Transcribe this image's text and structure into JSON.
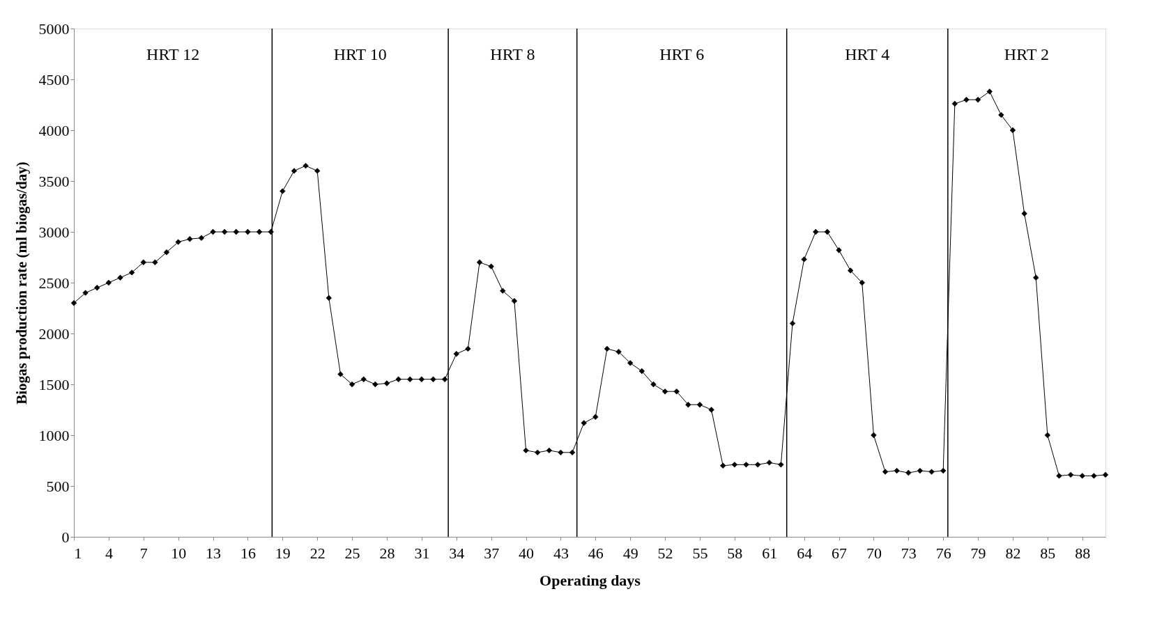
{
  "chart_data": {
    "type": "line",
    "xlabel": "Operating days",
    "ylabel": "Biogas production rate (ml biogas/day)",
    "x": [
      1,
      2,
      3,
      4,
      5,
      6,
      7,
      8,
      9,
      10,
      11,
      12,
      13,
      14,
      15,
      16,
      17,
      18,
      19,
      20,
      21,
      22,
      23,
      24,
      25,
      26,
      27,
      28,
      29,
      30,
      31,
      32,
      33,
      34,
      35,
      36,
      37,
      38,
      39,
      40,
      41,
      42,
      43,
      44,
      45,
      46,
      47,
      48,
      49,
      50,
      51,
      52,
      53,
      54,
      55,
      56,
      57,
      58,
      59,
      60,
      61,
      62,
      63,
      64,
      65,
      66,
      67,
      68,
      69,
      70,
      71,
      72,
      73,
      74,
      75,
      76,
      77,
      78,
      79,
      80,
      81,
      82,
      83,
      84,
      85,
      86,
      87,
      88,
      89,
      90
    ],
    "series": [
      {
        "color": "#000000",
        "values": [
          2300,
          2400,
          2450,
          2500,
          2550,
          2600,
          2700,
          2700,
          2800,
          2900,
          2930,
          2940,
          3000,
          3000,
          3000,
          3000,
          3000,
          3000,
          3400,
          3600,
          3650,
          3600,
          2350,
          1600,
          1500,
          1550,
          1500,
          1510,
          1550,
          1550,
          1550,
          1550,
          1550,
          1800,
          1850,
          2700,
          2660,
          2420,
          2320,
          850,
          830,
          850,
          830,
          830,
          1120,
          1180,
          1850,
          1820,
          1710,
          1630,
          1500,
          1430,
          1430,
          1300,
          1300,
          1250,
          700,
          710,
          710,
          710,
          730,
          710,
          2100,
          2730,
          3000,
          3000,
          2820,
          2620,
          2500,
          1000,
          640,
          650,
          630,
          650,
          640,
          650,
          4260,
          4300,
          4300,
          4380,
          4150,
          4000,
          3180,
          2550,
          1000,
          600,
          610,
          600,
          600,
          610
        ]
      }
    ],
    "marker": "diamond",
    "line_style": "solid",
    "grid": false,
    "xlim": [
      1,
      90
    ],
    "xticks": [
      1,
      4,
      7,
      10,
      13,
      16,
      19,
      22,
      25,
      28,
      31,
      34,
      37,
      40,
      43,
      46,
      49,
      52,
      55,
      58,
      61,
      64,
      67,
      70,
      73,
      76,
      79,
      82,
      85,
      88
    ],
    "ylim": [
      0,
      5000
    ],
    "yticks": [
      0,
      500,
      1000,
      1500,
      2000,
      2500,
      3000,
      3500,
      4000,
      4500,
      5000
    ],
    "ref_lines": [
      {
        "axis": "x",
        "value": 18.1,
        "color": "#000000"
      },
      {
        "axis": "x",
        "value": 33.3,
        "color": "#000000"
      },
      {
        "axis": "x",
        "value": 44.4,
        "color": "#000000"
      },
      {
        "axis": "x",
        "value": 62.5,
        "color": "#000000"
      },
      {
        "axis": "x",
        "value": 76.4,
        "color": "#000000"
      }
    ],
    "annotations": [
      "HRT 12",
      "HRT 10",
      "HRT 8",
      "HRT 6",
      "HRT 4",
      "HRT 2"
    ]
  }
}
